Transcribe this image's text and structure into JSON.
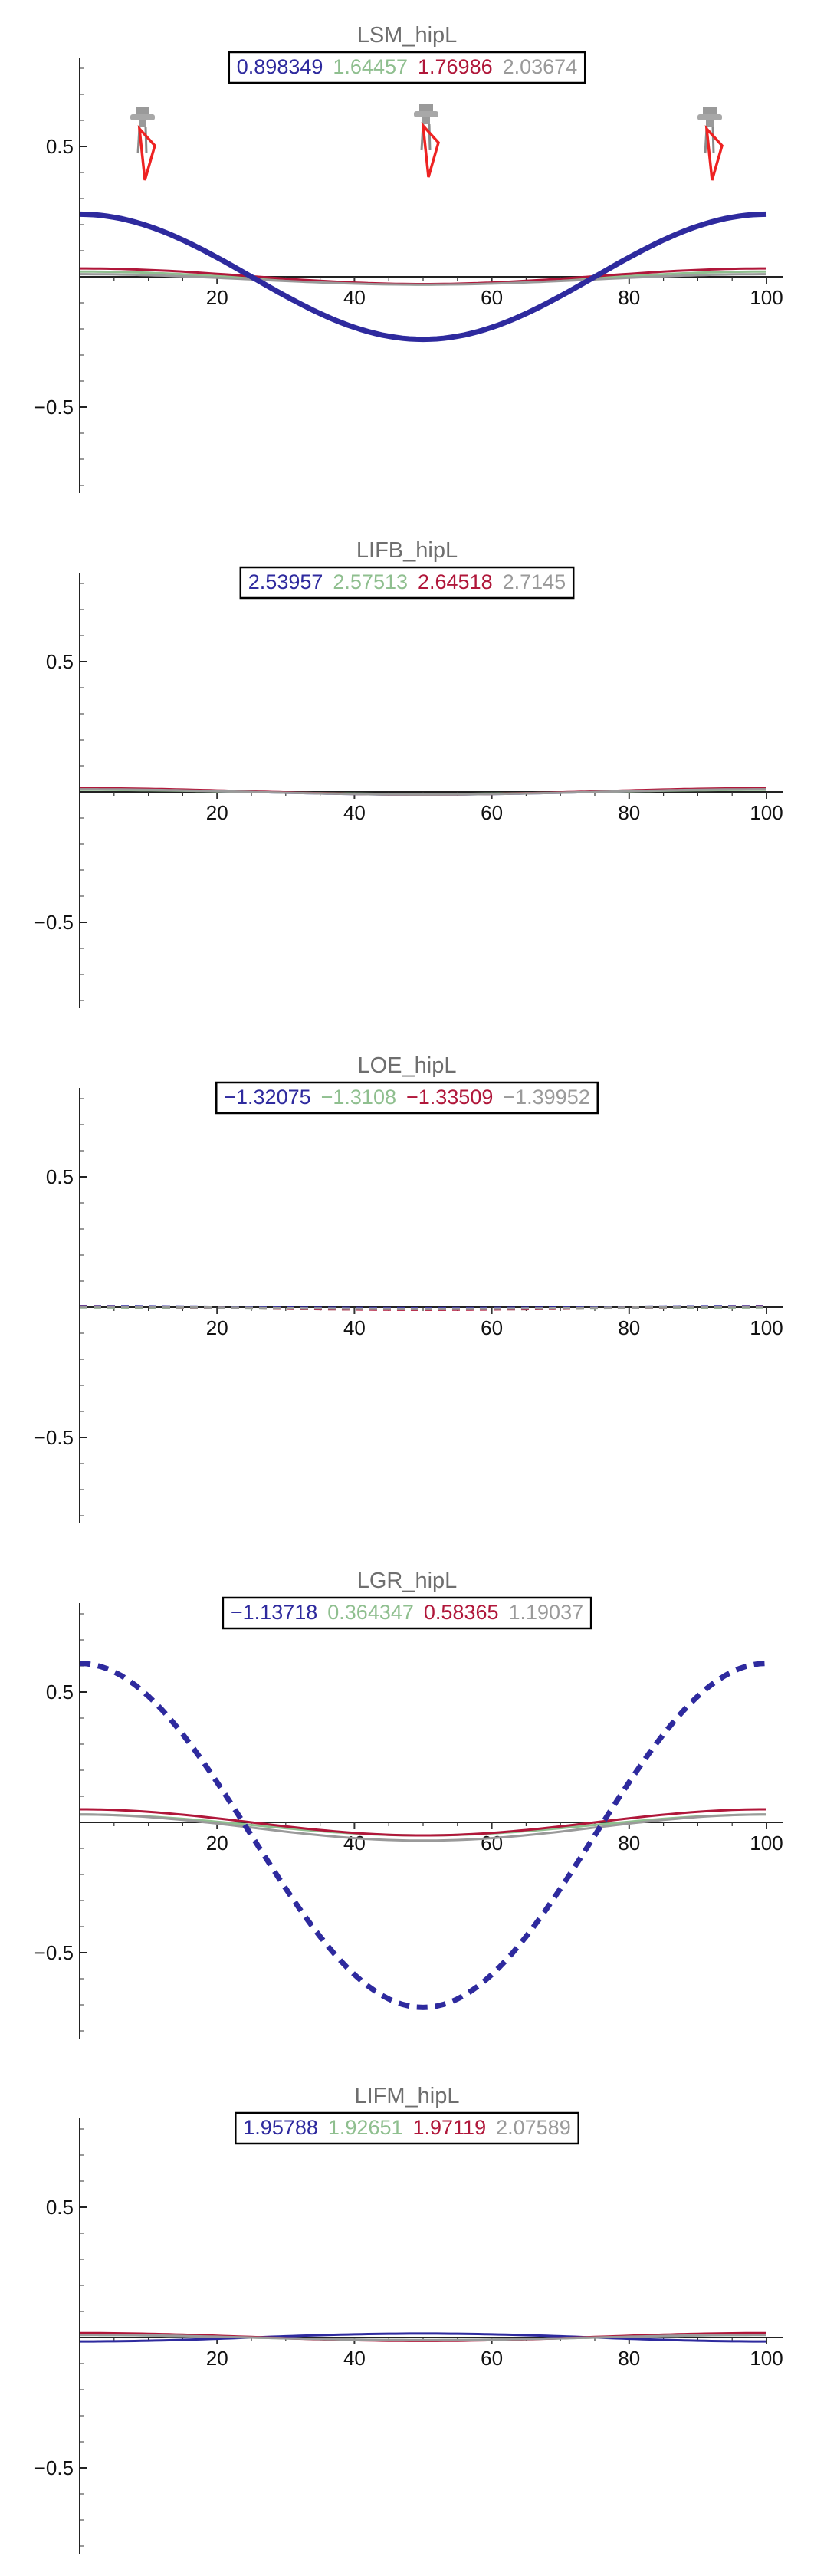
{
  "chart_data": [
    {
      "type": "line",
      "title": "LSM_hipL",
      "x_ticks": [
        20,
        40,
        60,
        80,
        100
      ],
      "y_ticks": [
        0.5,
        -0.5
      ],
      "y_tick_labels": [
        "0.5",
        "−0.5"
      ],
      "xlim": [
        0,
        100
      ],
      "ylim": [
        -0.82,
        0.82
      ],
      "has_figures": true,
      "series": [
        {
          "name": "0.898349",
          "label": "0.898349",
          "color": "#2e2a9e",
          "width": 7,
          "dashed": false,
          "amp": 0.24,
          "offset": 0.0
        },
        {
          "name": "1.64457",
          "label": "1.64457",
          "color": "#8fbf8f",
          "width": 3,
          "dashed": false,
          "amp": 0.025,
          "offset": -0.005
        },
        {
          "name": "1.76986",
          "label": "1.76986",
          "color": "#b0173a",
          "width": 3,
          "dashed": false,
          "amp": 0.03,
          "offset": 0.002
        },
        {
          "name": "2.03674",
          "label": "2.03674",
          "color": "#9a9a9a",
          "width": 3,
          "dashed": false,
          "amp": 0.02,
          "offset": -0.01
        }
      ]
    },
    {
      "type": "line",
      "title": "LIFB_hipL",
      "x_ticks": [
        20,
        40,
        60,
        80,
        100
      ],
      "y_ticks": [
        0.5,
        -0.5
      ],
      "y_tick_labels": [
        "0.5",
        "−0.5"
      ],
      "xlim": [
        0,
        100
      ],
      "ylim": [
        -0.82,
        0.82
      ],
      "has_figures": false,
      "series": [
        {
          "name": "2.53957",
          "label": "2.53957",
          "color": "#2e2a9e",
          "width": 3,
          "dashed": false,
          "amp": 0.01,
          "offset": 0.0
        },
        {
          "name": "2.57513",
          "label": "2.57513",
          "color": "#8fbf8f",
          "width": 3,
          "dashed": false,
          "amp": 0.008,
          "offset": 0.0
        },
        {
          "name": "2.64518",
          "label": "2.64518",
          "color": "#b0173a",
          "width": 3,
          "dashed": false,
          "amp": 0.012,
          "offset": 0.002
        },
        {
          "name": "2.7145",
          "label": "2.7145",
          "color": "#9a9a9a",
          "width": 3,
          "dashed": false,
          "amp": 0.01,
          "offset": 0.0
        }
      ]
    },
    {
      "type": "line",
      "title": "LOE_hipL",
      "x_ticks": [
        20,
        40,
        60,
        80,
        100
      ],
      "y_ticks": [
        0.5,
        -0.5
      ],
      "y_tick_labels": [
        "0.5",
        "−0.5"
      ],
      "xlim": [
        0,
        100
      ],
      "ylim": [
        -0.82,
        0.82
      ],
      "has_figures": false,
      "series": [
        {
          "name": "−1.32075",
          "label": "−1.32075",
          "color": "#2e2a9e",
          "width": 3,
          "dashed": true,
          "amp": 0.004,
          "offset": 0.0
        },
        {
          "name": "−1.3108",
          "label": "−1.3108",
          "color": "#8fbf8f",
          "width": 3,
          "dashed": true,
          "amp": 0.004,
          "offset": -0.005
        },
        {
          "name": "−1.33509",
          "label": "−1.33509",
          "color": "#b0173a",
          "width": 3,
          "dashed": true,
          "amp": 0.006,
          "offset": -0.004
        },
        {
          "name": "−1.39952",
          "label": "−1.39952",
          "color": "#9a9a9a",
          "width": 3,
          "dashed": true,
          "amp": 0.004,
          "offset": -0.003
        }
      ]
    },
    {
      "type": "line",
      "title": "LGR_hipL",
      "x_ticks": [
        20,
        40,
        60,
        80,
        100
      ],
      "y_ticks": [
        0.5,
        -0.5
      ],
      "y_tick_labels": [
        "0.5",
        "−0.5"
      ],
      "xlim": [
        0,
        100
      ],
      "ylim": [
        -0.82,
        0.82
      ],
      "has_figures": false,
      "series": [
        {
          "name": "−1.13718",
          "label": "−1.13718",
          "color": "#2e2a9e",
          "width": 7,
          "dashed": true,
          "amp": 0.66,
          "offset": -0.05
        },
        {
          "name": "0.364347",
          "label": "0.364347",
          "color": "#8fbf8f",
          "width": 3,
          "dashed": false,
          "amp": 0.04,
          "offset": -0.01
        },
        {
          "name": "0.58365",
          "label": "0.58365",
          "color": "#b0173a",
          "width": 3,
          "dashed": false,
          "amp": 0.05,
          "offset": 0.0
        },
        {
          "name": "1.19037",
          "label": "1.19037",
          "color": "#9a9a9a",
          "width": 3,
          "dashed": false,
          "amp": 0.05,
          "offset": -0.02
        }
      ]
    },
    {
      "type": "line",
      "title": "LIFM_hipL",
      "x_ticks": [
        20,
        40,
        60,
        80,
        100
      ],
      "y_ticks": [
        0.5,
        -0.5
      ],
      "y_tick_labels": [
        "0.5",
        "−0.5"
      ],
      "xlim": [
        0,
        100
      ],
      "ylim": [
        -0.82,
        0.82
      ],
      "has_figures": false,
      "series": [
        {
          "name": "1.95788",
          "label": "1.95788",
          "color": "#2e2a9e",
          "width": 3,
          "dashed": false,
          "amp": -0.015,
          "offset": 0.0
        },
        {
          "name": "1.92651",
          "label": "1.92651",
          "color": "#8fbf8f",
          "width": 3,
          "dashed": false,
          "amp": 0.01,
          "offset": 0.0
        },
        {
          "name": "1.97119",
          "label": "1.97119",
          "color": "#b0173a",
          "width": 3,
          "dashed": false,
          "amp": 0.015,
          "offset": 0.002
        },
        {
          "name": "2.07589",
          "label": "2.07589",
          "color": "#9a9a9a",
          "width": 3,
          "dashed": false,
          "amp": 0.01,
          "offset": 0.0
        }
      ]
    }
  ]
}
